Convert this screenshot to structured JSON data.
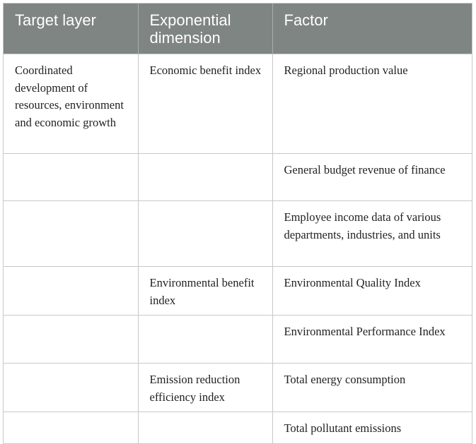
{
  "header": {
    "col1": "Target layer",
    "col2": "Exponential dimension",
    "col3": "Factor"
  },
  "rows": [
    {
      "target": "Coordinated development of resources, environment and economic growth",
      "dimension": "Economic benefit index",
      "factor": "Regional production value"
    },
    {
      "target": "",
      "dimension": "",
      "factor": "General budget revenue of finance"
    },
    {
      "target": "",
      "dimension": "",
      "factor": "Employee income data of various departments, industries, and units"
    },
    {
      "target": "",
      "dimension": "Environmental benefit index",
      "factor": "Environmental Quality Index"
    },
    {
      "target": "",
      "dimension": "",
      "factor": "Environmental Performance Index"
    },
    {
      "target": "",
      "dimension": "Emission reduction efficiency index",
      "factor": "Total energy consumption"
    },
    {
      "target": "",
      "dimension": "",
      "factor": "Total pollutant emissions"
    }
  ]
}
